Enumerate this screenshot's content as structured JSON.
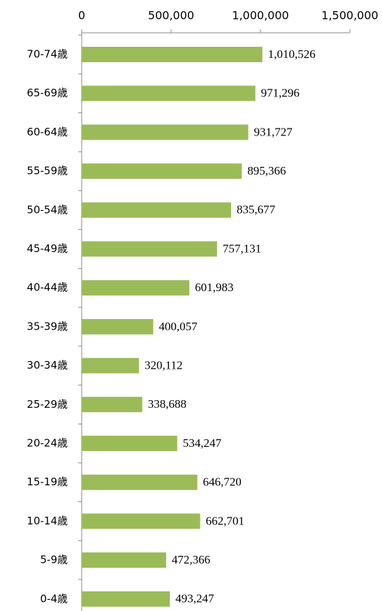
{
  "chart_data": {
    "type": "bar",
    "orientation": "horizontal",
    "categories": [
      "70-74歳",
      "65-69歳",
      "60-64歳",
      "55-59歳",
      "50-54歳",
      "45-49歳",
      "40-44歳",
      "35-39歳",
      "30-34歳",
      "25-29歳",
      "20-24歳",
      "15-19歳",
      "10-14歳",
      "5-9歳",
      "0-4歳"
    ],
    "values": [
      1010526,
      971296,
      931727,
      895366,
      835677,
      757131,
      601983,
      400057,
      320112,
      338688,
      534247,
      646720,
      662701,
      472366,
      493247
    ],
    "value_labels": [
      "1,010,526",
      "971,296",
      "931,727",
      "895,366",
      "835,677",
      "757,131",
      "601,983",
      "400,057",
      "320,112",
      "338,688",
      "534,247",
      "646,720",
      "662,701",
      "472,366",
      "493,247"
    ],
    "color": "#9bbb59",
    "xlim": [
      0,
      1500000
    ],
    "xticks": [
      0,
      {
        "value": 500000,
        "label": "500,000"
      },
      {
        "value": 1000000,
        "label": "1,000,000"
      },
      {
        "value": 1500000,
        "label": "1,500,000"
      }
    ],
    "grid": false
  }
}
